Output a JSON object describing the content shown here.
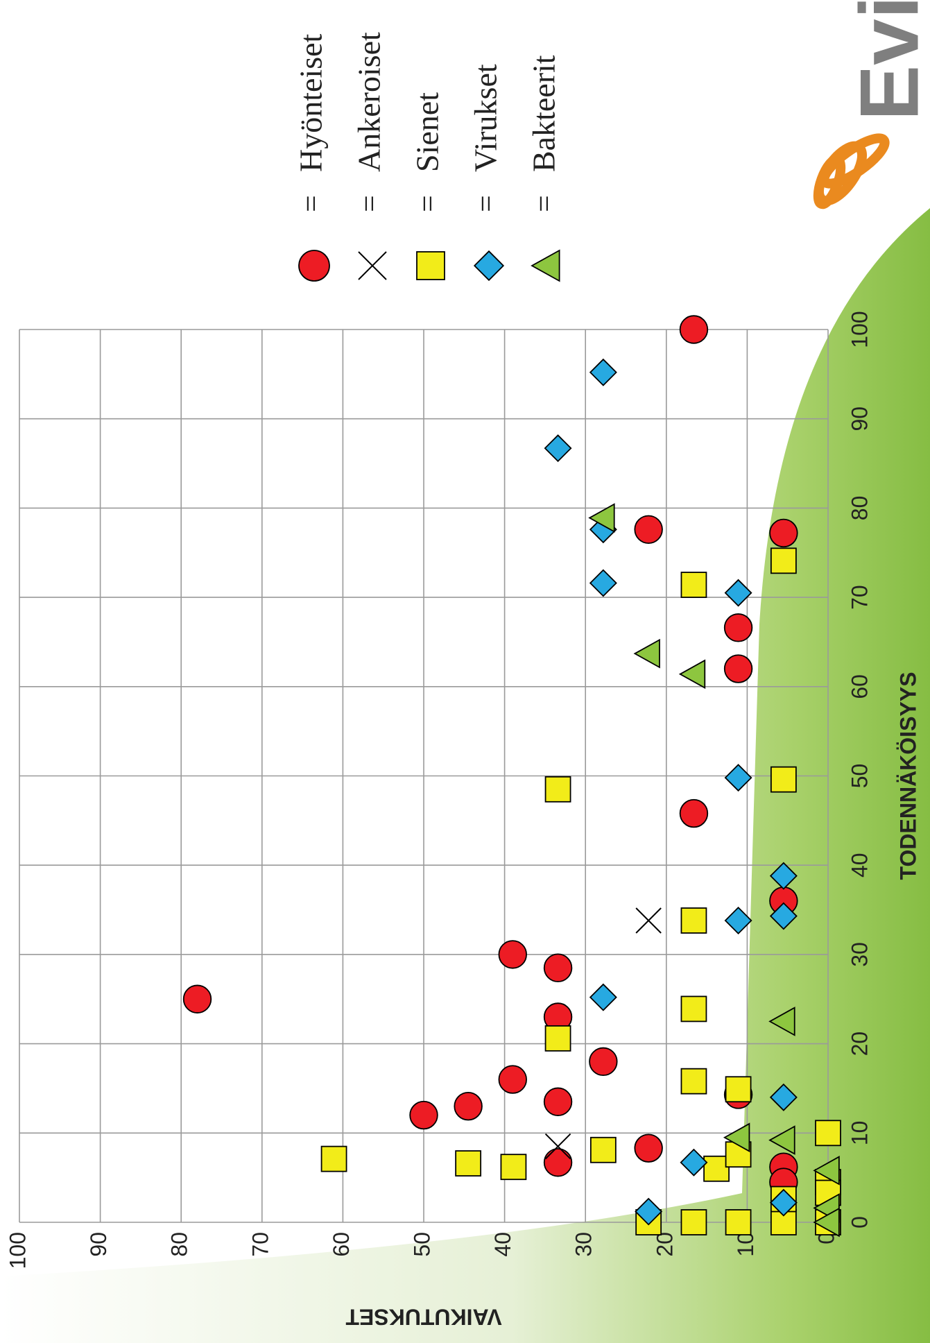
{
  "chart_data": {
    "type": "scatter",
    "x_label": "TODENNÄKÖISYYS",
    "y_label": "VAIKUTUKSET",
    "xlim": [
      0,
      100
    ],
    "ylim": [
      0,
      100
    ],
    "xticks": [
      0,
      10,
      20,
      30,
      40,
      50,
      60,
      70,
      80,
      90,
      100
    ],
    "yticks": [
      0,
      10,
      20,
      30,
      40,
      50,
      60,
      70,
      80,
      90,
      100
    ],
    "grid": true,
    "legend_separator": "=",
    "series": [
      {
        "name": "Hyönteiset",
        "color": "#ed1c24",
        "marker": "circle",
        "x": [
          25,
          12,
          13,
          16,
          30,
          28.5,
          13.5,
          23,
          6.7,
          18,
          8.3,
          100,
          77.6,
          45.8,
          66.6,
          62,
          14.3,
          77.2,
          36,
          6.2,
          4.5
        ],
        "values": [
          78,
          50,
          44.5,
          39,
          39,
          33.4,
          33.4,
          33.4,
          33.4,
          27.8,
          22.2,
          16.6,
          22.2,
          16.6,
          11.1,
          11.1,
          11.1,
          5.5,
          5.5,
          5.5,
          5.5
        ]
      },
      {
        "name": "Ankeroiset",
        "color": "#000000",
        "marker": "x",
        "x": [
          8.5,
          33.8
        ],
        "values": [
          33.4,
          22.2
        ]
      },
      {
        "name": "Sienet",
        "color": "#f2ec19",
        "marker": "square",
        "x": [
          7.1,
          6.6,
          6.2,
          48.5,
          20.6,
          8.1,
          0,
          0,
          0,
          0,
          0,
          71.4,
          33.8,
          23.9,
          15.8,
          6,
          14.9,
          7.6,
          74.1,
          49.6,
          2.6,
          10,
          4.5,
          3.3
        ],
        "values": [
          61.1,
          44.5,
          38.9,
          33.4,
          33.4,
          27.8,
          22.2,
          16.6,
          11.1,
          5.5,
          0,
          16.6,
          16.6,
          16.6,
          16.6,
          13.8,
          11.1,
          11.1,
          5.5,
          5.5,
          5.5,
          0,
          0,
          0
        ]
      },
      {
        "name": "Virukset",
        "color": "#27a9e1",
        "marker": "diamond",
        "x": [
          95.2,
          86.7,
          77.6,
          71.6,
          70.5,
          49.8,
          38.8,
          34.3,
          33.8,
          25.2,
          14,
          6.7,
          1.2,
          2.2
        ],
        "values": [
          27.8,
          33.4,
          27.8,
          27.8,
          11.1,
          11.1,
          5.5,
          5.5,
          11.1,
          27.8,
          5.5,
          16.6,
          22.2,
          5.5
        ]
      },
      {
        "name": "Bakteerit",
        "color": "#8dc63f",
        "marker": "triangle",
        "x": [
          78.9,
          63.7,
          61.4,
          22.5,
          9.5,
          9.2,
          5.8,
          1.6,
          0
        ],
        "values": [
          27.8,
          22.2,
          16.6,
          5.5,
          11.1,
          5.5,
          0,
          0,
          0
        ]
      }
    ]
  },
  "logo": {
    "text": "Evira"
  }
}
